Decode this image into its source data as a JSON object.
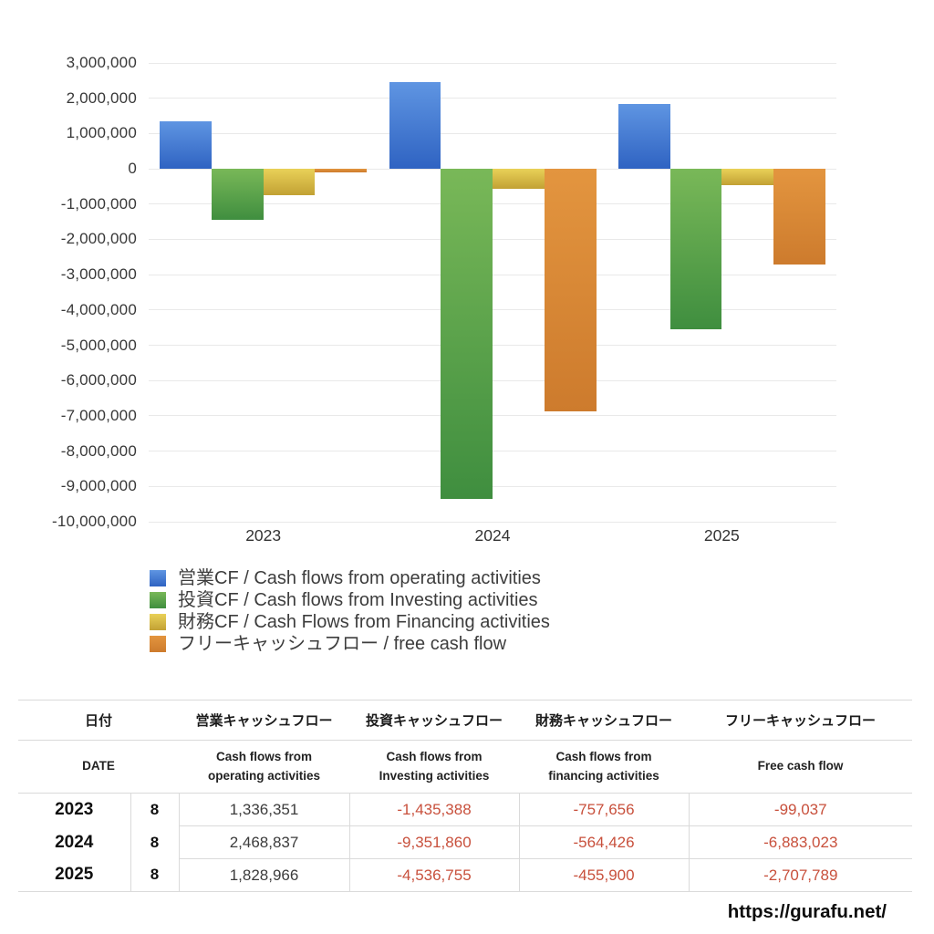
{
  "chart_data": {
    "type": "bar",
    "categories": [
      "2023",
      "2024",
      "2025"
    ],
    "series": [
      {
        "name": "営業CF / Cash flows from operating activities",
        "color_top": "#5f95e2",
        "color_bottom": "#2f63c2",
        "values": [
          1336351,
          2468837,
          1828966
        ]
      },
      {
        "name": "投資CF / Cash flows from Investing activities",
        "color_top": "#79b858",
        "color_bottom": "#3f8e3f",
        "values": [
          -1435388,
          -9351860,
          -4536755
        ]
      },
      {
        "name": "財務CF / Cash Flows from Financing activities",
        "color_top": "#e9d158",
        "color_bottom": "#c2a134",
        "values": [
          -757656,
          -564426,
          -455900
        ]
      },
      {
        "name": "フリーキャッシュフロー / free cash flow",
        "color_top": "#e3953f",
        "color_bottom": "#cd7b2d",
        "values": [
          -99037,
          -6883023,
          -2707789
        ]
      }
    ],
    "title": "",
    "xlabel": "",
    "ylabel": "",
    "ylim": [
      -10000000,
      3000000
    ],
    "ytick_step": 1000000,
    "grid": true,
    "gridline_color": "#e9e9e9",
    "legend_position": "bottom-left"
  },
  "table": {
    "header_jp": [
      "日付",
      "営業キャッシュフロー",
      "投資キャッシュフロー",
      "財務キャッシュフロー",
      "フリーキャッシュフロー"
    ],
    "header_en": [
      "DATE",
      "Cash flows from\noperating activities",
      "Cash flows from\nInvesting activities",
      "Cash flows from\nfinancing activities",
      "Free cash flow"
    ],
    "rows": [
      {
        "year": "2023",
        "month": "8",
        "values": [
          "1,336,351",
          "-1,435,388",
          "-757,656",
          "-99,037"
        ]
      },
      {
        "year": "2024",
        "month": "8",
        "values": [
          "2,468,837",
          "-9,351,860",
          "-564,426",
          "-6,883,023"
        ]
      },
      {
        "year": "2025",
        "month": "8",
        "values": [
          "1,828,966",
          "-4,536,755",
          "-455,900",
          "-2,707,789"
        ]
      }
    ],
    "negative_color": "#c8503c"
  },
  "footer": {
    "url": "https://gurafu.net/"
  }
}
